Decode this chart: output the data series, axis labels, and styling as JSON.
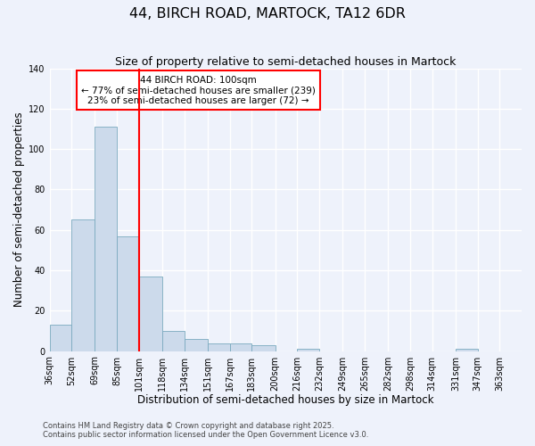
{
  "title": "44, BIRCH ROAD, MARTOCK, TA12 6DR",
  "subtitle": "Size of property relative to semi-detached houses in Martock",
  "xlabel": "Distribution of semi-detached houses by size in Martock",
  "ylabel": "Number of semi-detached properties",
  "bin_labels": [
    "36sqm",
    "52sqm",
    "69sqm",
    "85sqm",
    "101sqm",
    "118sqm",
    "134sqm",
    "151sqm",
    "167sqm",
    "183sqm",
    "200sqm",
    "216sqm",
    "232sqm",
    "249sqm",
    "265sqm",
    "282sqm",
    "298sqm",
    "314sqm",
    "331sqm",
    "347sqm",
    "363sqm"
  ],
  "bin_edges": [
    36,
    52,
    69,
    85,
    101,
    118,
    134,
    151,
    167,
    183,
    200,
    216,
    232,
    249,
    265,
    282,
    298,
    314,
    331,
    347,
    363
  ],
  "bar_heights": [
    13,
    65,
    111,
    57,
    37,
    10,
    6,
    4,
    4,
    3,
    0,
    1,
    0,
    0,
    0,
    0,
    0,
    0,
    1,
    0,
    0
  ],
  "bar_color": "#ccdaeb",
  "bar_edge_color": "#7aaabf",
  "property_line_x": 101,
  "property_line_color": "red",
  "annotation_title": "44 BIRCH ROAD: 100sqm",
  "annotation_line1": "← 77% of semi-detached houses are smaller (239)",
  "annotation_line2": "23% of semi-detached houses are larger (72) →",
  "annotation_box_color": "white",
  "annotation_box_edge": "red",
  "ylim": [
    0,
    140
  ],
  "yticks": [
    0,
    20,
    40,
    60,
    80,
    100,
    120,
    140
  ],
  "footer1": "Contains HM Land Registry data © Crown copyright and database right 2025.",
  "footer2": "Contains public sector information licensed under the Open Government Licence v3.0.",
  "background_color": "#eef2fb",
  "grid_color": "white",
  "title_fontsize": 11.5,
  "subtitle_fontsize": 9,
  "axis_label_fontsize": 8.5,
  "tick_fontsize": 7,
  "footer_fontsize": 6,
  "annotation_fontsize": 7.5
}
